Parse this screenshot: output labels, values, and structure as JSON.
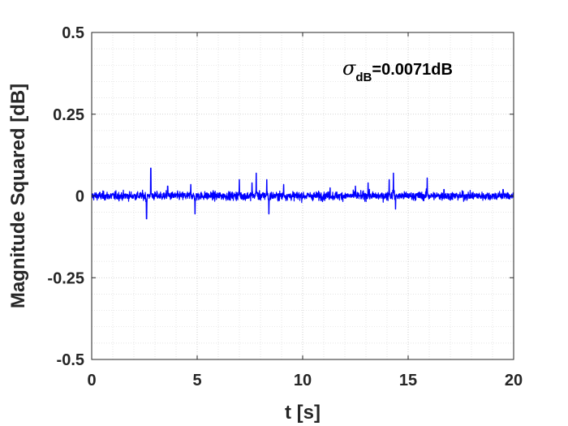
{
  "chart_data": {
    "type": "line",
    "xlabel": "t [s]",
    "ylabel": "Magnitude Squared [dB]",
    "xlim": [
      0,
      20
    ],
    "ylim": [
      -0.5,
      0.5
    ],
    "xticks": [
      0,
      5,
      10,
      15,
      20
    ],
    "xtick_labels": [
      "0",
      "5",
      "10",
      "15",
      "20"
    ],
    "yticks": [
      -0.5,
      -0.25,
      0,
      0.25,
      0.5
    ],
    "ytick_labels": [
      "-0.5",
      "-0.25",
      "0",
      "0.25",
      "0.5"
    ],
    "grid": true,
    "minor_grid": true,
    "annotation": {
      "symbol": "σ",
      "subscript": "dB",
      "value_text": "=0.0071dB"
    },
    "series": [
      {
        "color": "#0000ff",
        "noise_std": 0.0071,
        "sample_count": 2000,
        "spikes": [
          {
            "x": 2.6,
            "y": -0.07
          },
          {
            "x": 2.8,
            "y": 0.085
          },
          {
            "x": 3.6,
            "y": 0.03
          },
          {
            "x": 4.7,
            "y": 0.035
          },
          {
            "x": 4.9,
            "y": -0.055
          },
          {
            "x": 7.0,
            "y": 0.05
          },
          {
            "x": 7.6,
            "y": 0.04
          },
          {
            "x": 7.8,
            "y": 0.07
          },
          {
            "x": 8.3,
            "y": 0.05
          },
          {
            "x": 8.4,
            "y": -0.055
          },
          {
            "x": 9.1,
            "y": 0.035
          },
          {
            "x": 11.3,
            "y": 0.025
          },
          {
            "x": 12.5,
            "y": 0.03
          },
          {
            "x": 13.1,
            "y": 0.04
          },
          {
            "x": 14.1,
            "y": 0.05
          },
          {
            "x": 14.3,
            "y": 0.07
          },
          {
            "x": 14.4,
            "y": -0.04
          },
          {
            "x": 15.9,
            "y": 0.055
          },
          {
            "x": 16.7,
            "y": 0.02
          },
          {
            "x": 19.5,
            "y": 0.02
          }
        ]
      }
    ]
  }
}
